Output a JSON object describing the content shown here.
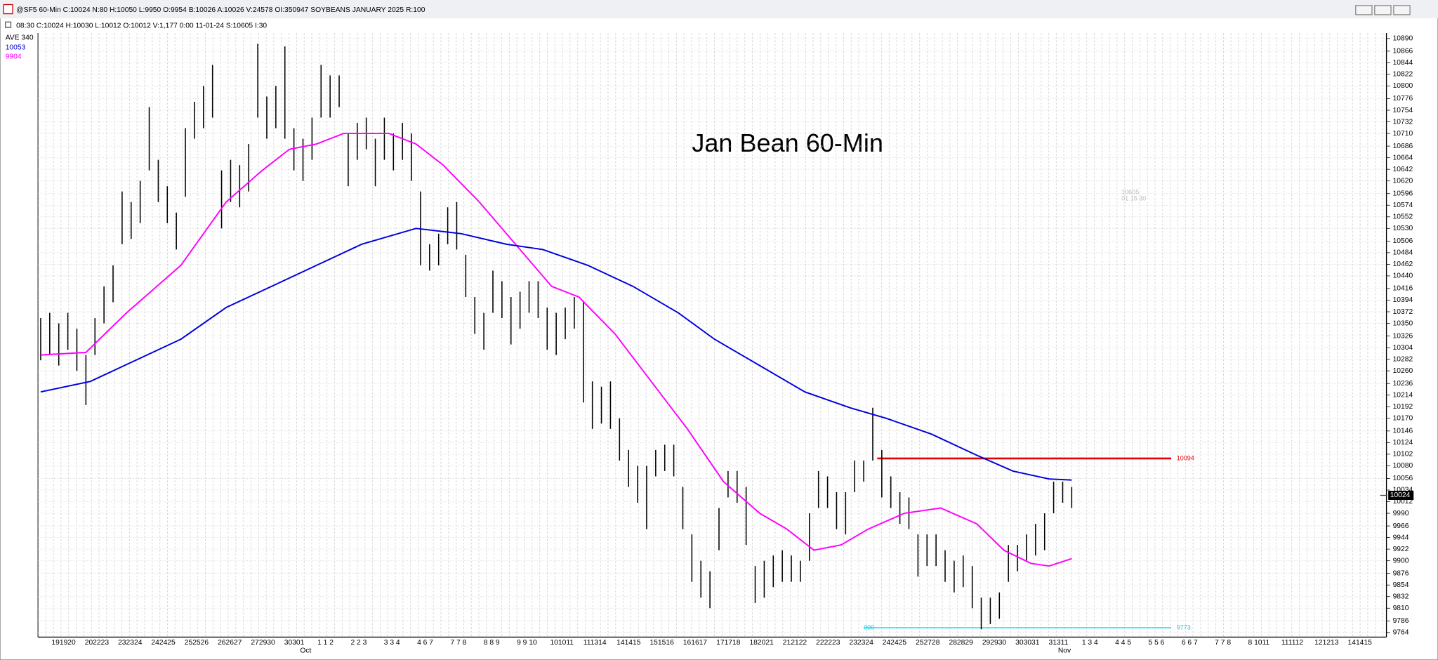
{
  "chart_data": {
    "type": "ohlc",
    "title": "@SF5 60-Min C:10024 N:80 H:10050 L:9950 O:9954 B:10026 A:10026 V:24578 OI:350947 SOYBEANS JANUARY 2025 R:100",
    "subtitle": "08:30  C:10024   H:10030   L:10012   O:10012   V:1,177   0:00   11-01-24   S:10605   I:30",
    "annotation": "Jan Bean 60-Min",
    "legend_title": "AVE  340",
    "ghost_text": [
      "10605",
      "01 15 30"
    ],
    "last_price": 10024,
    "bars": {
      "color": "#000000",
      "high": [
        10360,
        10370,
        10350,
        10370,
        10340,
        10290,
        10360,
        10420,
        10460,
        10600,
        10580,
        10620,
        10760,
        10660,
        10610,
        10560,
        10720,
        10770,
        10800,
        10840,
        10640,
        10660,
        10650,
        10690,
        10880,
        10780,
        10800,
        10875,
        10720,
        10700,
        10740,
        10840,
        10820,
        10820,
        10710,
        10730,
        10740,
        10700,
        10740,
        10710,
        10730,
        10710,
        10600,
        10500,
        10520,
        10570,
        10580,
        10480,
        10400,
        10370,
        10450,
        10430,
        10400,
        10410,
        10430,
        10430,
        10380,
        10370,
        10380,
        10400,
        10390,
        10240,
        10230,
        10240,
        10170,
        10110,
        10080,
        10080,
        10110,
        10120,
        10120,
        10040,
        9950,
        9900,
        9880,
        10000,
        10070,
        10070,
        10040,
        9890,
        9900,
        9910,
        9920,
        9910,
        9900,
        9990,
        10070,
        10060,
        10030,
        10030,
        10090,
        10090,
        10190,
        10110,
        10060,
        10030,
        10020,
        9950,
        9950,
        9950,
        9920,
        9900,
        9910,
        9890,
        9830,
        9830,
        9840,
        9930,
        9930,
        9950,
        9970,
        9990,
        10050,
        10050,
        10040
      ],
      "low": [
        10280,
        10290,
        10270,
        10300,
        10260,
        10195,
        10290,
        10350,
        10390,
        10500,
        10510,
        10540,
        10640,
        10580,
        10540,
        10490,
        10590,
        10700,
        10720,
        10740,
        10530,
        10580,
        10570,
        10600,
        10740,
        10700,
        10720,
        10700,
        10640,
        10620,
        10660,
        10740,
        10740,
        10760,
        10610,
        10660,
        10680,
        10610,
        10660,
        10640,
        10660,
        10620,
        10460,
        10450,
        10460,
        10500,
        10490,
        10400,
        10330,
        10300,
        10370,
        10360,
        10310,
        10340,
        10370,
        10360,
        10300,
        10290,
        10320,
        10340,
        10200,
        10150,
        10160,
        10150,
        10090,
        10040,
        10010,
        9960,
        10060,
        10070,
        10060,
        9960,
        9860,
        9830,
        9810,
        9920,
        10020,
        10010,
        9930,
        9820,
        9830,
        9850,
        9860,
        9860,
        9860,
        9900,
        10000,
        10000,
        9960,
        9950,
        10030,
        10050,
        10090,
        10020,
        10000,
        9970,
        9960,
        9870,
        9890,
        9890,
        9860,
        9840,
        9850,
        9810,
        9770,
        9780,
        9790,
        9860,
        9880,
        9900,
        9910,
        9920,
        9990,
        10010,
        10000
      ]
    },
    "series": [
      {
        "color": "#ff00ff",
        "x": [
          0,
          5,
          9.5,
          15.5,
          20.5,
          24.5,
          27.5,
          30.5,
          33.5,
          38.5,
          41.5,
          44.5,
          48.5,
          52.5,
          56.5,
          59.5,
          63.5,
          67.5,
          71.5,
          75.5,
          79.5,
          82.5,
          85.5,
          88.5,
          91.5,
          95.5,
          99.5,
          103.5,
          106.5,
          109.5,
          111.5,
          114
        ],
        "values": [
          10290,
          10295,
          10370,
          10460,
          10580,
          10640,
          10680,
          10690,
          10710,
          10710,
          10690,
          10650,
          10580,
          10500,
          10420,
          10400,
          10330,
          10240,
          10150,
          10050,
          9990,
          9960,
          9920,
          9930,
          9960,
          9990,
          10000,
          9970,
          9920,
          9895,
          9890,
          9904
        ]
      },
      {
        "color": "#0000dd",
        "x": [
          0,
          5.5,
          10.5,
          15.5,
          20.5,
          25.5,
          30.5,
          35.5,
          41.5,
          46.5,
          51.5,
          55.5,
          60.5,
          65.5,
          70.5,
          74.5,
          79.5,
          84.5,
          89.5,
          93.5,
          98.5,
          103.5,
          107.5,
          111.5,
          114
        ],
        "values": [
          10220,
          10240,
          10280,
          10320,
          10380,
          10420,
          10460,
          10500,
          10530,
          10520,
          10500,
          10490,
          10460,
          10420,
          10370,
          10320,
          10270,
          10220,
          10190,
          10170,
          10140,
          10100,
          10070,
          10055,
          10053
        ]
      }
    ],
    "hlines": [
      {
        "value": 10094,
        "color": "#e00000"
      },
      {
        "value": 9773,
        "color": "#00d8e8",
        "start_label": "000"
      }
    ],
    "ylim": [
      9764,
      10890
    ],
    "yticks": [
      10890,
      10866,
      10844,
      10822,
      10800,
      10776,
      10754,
      10732,
      10710,
      10686,
      10664,
      10642,
      10620,
      10596,
      10574,
      10552,
      10530,
      10506,
      10484,
      10462,
      10440,
      10416,
      10394,
      10372,
      10350,
      10326,
      10304,
      10282,
      10260,
      10236,
      10214,
      10192,
      10170,
      10146,
      10124,
      10102,
      10080,
      10056,
      10034,
      10012,
      9990,
      9966,
      9944,
      9922,
      9900,
      9876,
      9854,
      9832,
      9810,
      9786,
      9764
    ],
    "grid": true,
    "xlabels": [
      "191920",
      "202223",
      "232324",
      "242425",
      "252526",
      "262627",
      "272930",
      "30301",
      "1 1 2",
      "2 2 3",
      "3 3 4",
      "4 6 7",
      "7 7 8",
      "8 8 9",
      "9 9 10",
      "101011",
      "111314",
      "141415",
      "151516",
      "161617",
      "171718",
      "182021",
      "212122",
      "222223",
      "232324",
      "242425",
      "252728",
      "282829",
      "292930",
      "303031",
      "31311",
      "1 3 4",
      "4 4 5",
      "5 5 6",
      "6 6 7",
      "7 7 8",
      "8 1011",
      "111112",
      "121213",
      "141415"
    ],
    "months": [
      "Oct",
      "Nov"
    ]
  }
}
